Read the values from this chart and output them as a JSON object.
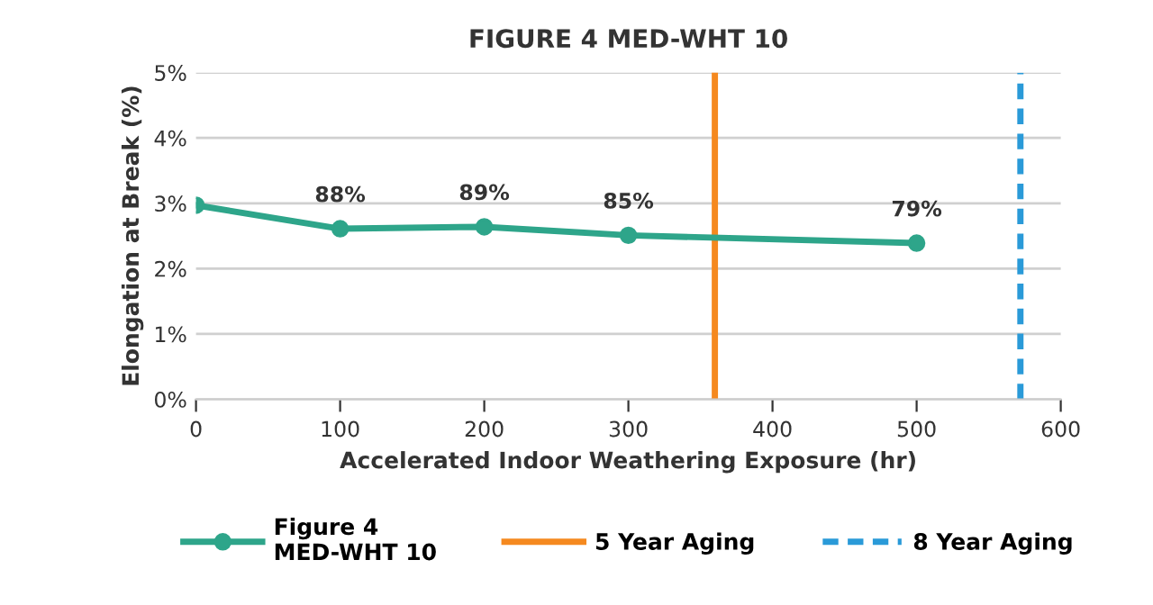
{
  "chart_data": {
    "type": "line",
    "title": "FIGURE 4 MED-WHT 10",
    "xlabel": "Accelerated Indoor Weathering Exposure (hr)",
    "ylabel": "Elongation at Break (%)",
    "x": [
      0,
      100,
      200,
      300,
      500
    ],
    "series": [
      {
        "name": "Figure 4\nMED-WHT 10",
        "color": "#2ea58a",
        "values": [
          2.97,
          2.61,
          2.64,
          2.51,
          2.39
        ]
      }
    ],
    "annotations": [
      {
        "text": "88%",
        "x": 100,
        "y": 2.61
      },
      {
        "text": "89%",
        "x": 200,
        "y": 2.64
      },
      {
        "text": "85%",
        "x": 300,
        "y": 2.51
      },
      {
        "text": "79%",
        "x": 500,
        "y": 2.39
      }
    ],
    "ref_lines": [
      {
        "axis": "x",
        "value": 360,
        "label": "5 Year Aging",
        "color": "#f5891f",
        "line_style": "solid"
      },
      {
        "axis": "x",
        "value": 572,
        "label": "8 Year Aging",
        "color": "#2a9ad8",
        "line_style": "dashed"
      }
    ],
    "xlim": [
      0,
      600
    ],
    "xticks": [
      0,
      100,
      200,
      300,
      400,
      500,
      600
    ],
    "ylim": [
      0,
      5
    ],
    "yticks": [
      {
        "value": 0,
        "label": "0%"
      },
      {
        "value": 1,
        "label": "1%"
      },
      {
        "value": 2,
        "label": "2%"
      },
      {
        "value": 3,
        "label": "3%"
      },
      {
        "value": 4,
        "label": "4%"
      },
      {
        "value": 5,
        "label": "5%"
      }
    ],
    "grid": "y",
    "legend": "bottom",
    "marker": "circle",
    "line_style": "solid"
  }
}
